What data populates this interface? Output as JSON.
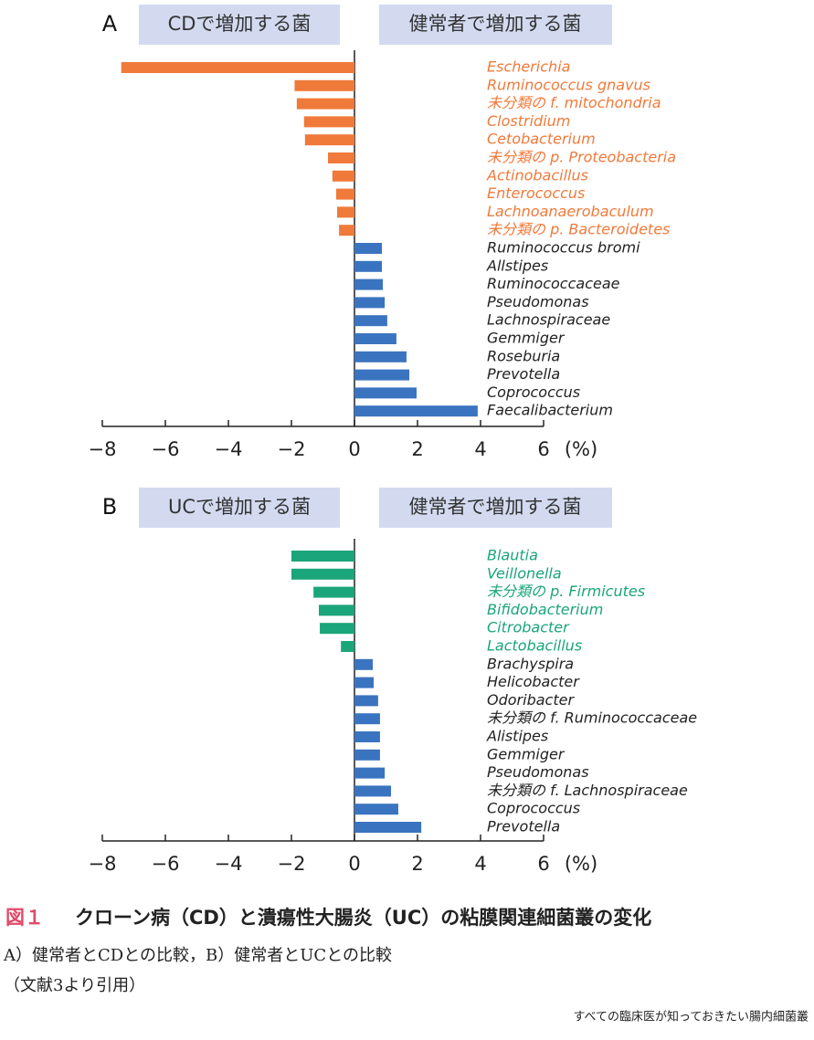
{
  "chart_data": [
    {
      "type": "bar",
      "orientation": "horizontal",
      "panel_label": "A",
      "left_header": "CDで増加する菌",
      "right_header": "健常者で増加する菌",
      "xlabel": "(%)",
      "categories": [
        "Escherichia",
        "Ruminococcus gnavus",
        "未分類の f. mitochondria",
        "Clostridium",
        "Cetobacterium",
        "未分類の p. Proteobacteria",
        "Actinobacillus",
        "Enterococcus",
        "Lachnoanaerobaculum",
        "未分類の p. Bacteroidetes",
        "Ruminococcus bromi",
        "Allstipes",
        "Ruminococcaceae",
        "Pseudomonas",
        "Lachnospiraceae",
        "Gemmiger",
        "Roseburia",
        "Prevotella",
        "Coprococcus",
        "Faecalibacterium"
      ],
      "values": [
        -7.4,
        -1.9,
        -1.83,
        -1.6,
        -1.57,
        -0.84,
        -0.7,
        -0.58,
        -0.55,
        -0.49,
        0.87,
        0.87,
        0.9,
        0.96,
        1.04,
        1.33,
        1.65,
        1.74,
        1.97,
        3.91
      ],
      "negative_color": "#f07a3a",
      "positive_color": "#3a74c0",
      "xlim": [
        -8,
        6
      ],
      "xticks": [
        {
          "value": -8,
          "label": "−8"
        },
        {
          "value": -6,
          "label": "−6"
        },
        {
          "value": -4,
          "label": "−4"
        },
        {
          "value": -2,
          "label": "−2"
        },
        0,
        2,
        4,
        6
      ]
    },
    {
      "type": "bar",
      "orientation": "horizontal",
      "panel_label": "B",
      "left_header": "UCで増加する菌",
      "right_header": "健常者で増加する菌",
      "xlabel": "(%)",
      "categories": [
        "Blautia",
        "Veillonella",
        "未分類の p. Firmicutes",
        "Bifidobacterium",
        "Citrobacter",
        "Lactobacillus",
        "Brachyspira",
        "Helicobacter",
        "Odoribacter",
        "未分類の f. Ruminococcaceae",
        "Alistipes",
        "Gemmiger",
        "Pseudomonas",
        "未分類の f. Lachnospiraceae",
        "Coprococcus",
        "Prevotella"
      ],
      "values": [
        -2.0,
        -2.0,
        -1.3,
        -1.13,
        -1.1,
        -0.43,
        0.58,
        0.61,
        0.75,
        0.81,
        0.81,
        0.81,
        0.96,
        1.16,
        1.39,
        2.12
      ],
      "negative_color": "#1aa57a",
      "positive_color": "#3a74c0",
      "xlim": [
        -8,
        6
      ],
      "xticks": [
        {
          "value": -8,
          "label": "−8"
        },
        {
          "value": -6,
          "label": "−6"
        },
        {
          "value": -4,
          "label": "−4"
        },
        {
          "value": -2,
          "label": "−2"
        },
        0,
        2,
        4,
        6
      ]
    }
  ],
  "caption": {
    "number": "図１",
    "title": "クローン病（CD）と潰瘍性大腸炎（UC）の粘膜関連細菌叢の変化",
    "line1": "A）健常者とCDとの比較，B）健常者とUCとの比較",
    "line2": "（文献3より引用）"
  },
  "footer": "すべての臨床医が知っておきたい腸内細菌叢"
}
